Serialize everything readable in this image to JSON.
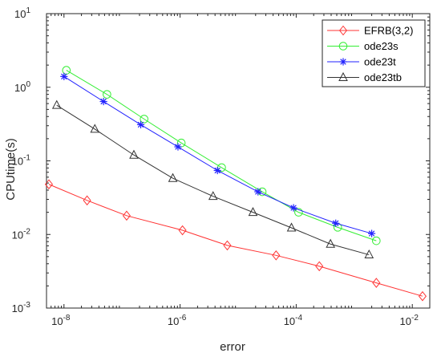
{
  "chart_data": {
    "type": "line",
    "xlabel": "error",
    "ylabel": "CPUtime(s)",
    "x_scale": "log",
    "y_scale": "log",
    "xlim": [
      5e-09,
      0.02
    ],
    "ylim": [
      0.001,
      10
    ],
    "grid": false,
    "legend_position": "top-right",
    "x_ticks": [
      {
        "value": 1e-08,
        "base": "10",
        "exp": "-8"
      },
      {
        "value": 1e-06,
        "base": "10",
        "exp": "-6"
      },
      {
        "value": 0.0001,
        "base": "10",
        "exp": "-4"
      },
      {
        "value": 0.01,
        "base": "10",
        "exp": "-2"
      }
    ],
    "y_ticks": [
      {
        "value": 0.001,
        "base": "10",
        "exp": "-3"
      },
      {
        "value": 0.01,
        "base": "10",
        "exp": "-2"
      },
      {
        "value": 0.1,
        "base": "10",
        "exp": "-1"
      },
      {
        "value": 1,
        "base": "10",
        "exp": "0"
      },
      {
        "value": 10,
        "base": "10",
        "exp": "1"
      }
    ],
    "series": [
      {
        "name": "EFRB(3,2)",
        "color": "#ff3333",
        "marker": "diamond",
        "x": [
          5.5e-09,
          2.5e-08,
          1.2e-07,
          1.1e-06,
          6.5e-06,
          4.5e-05,
          0.00025,
          0.0024,
          0.015
        ],
        "y": [
          0.048,
          0.029,
          0.018,
          0.0114,
          0.0071,
          0.0052,
          0.0037,
          0.0022,
          0.00145
        ]
      },
      {
        "name": "ode23s",
        "color": "#33ee33",
        "marker": "circle",
        "x": [
          1.1e-08,
          5.5e-08,
          2.4e-07,
          1.05e-06,
          5.2e-06,
          2.6e-05,
          0.00011,
          0.00052,
          0.0024
        ],
        "y": [
          1.7,
          0.8,
          0.37,
          0.175,
          0.081,
          0.038,
          0.02,
          0.0125,
          0.0082
        ]
      },
      {
        "name": "ode23t",
        "color": "#2222ff",
        "marker": "asterisk",
        "x": [
          1e-08,
          4.8e-08,
          2.1e-07,
          9.2e-07,
          4.4e-06,
          2.2e-05,
          9e-05,
          0.00048,
          0.002
        ],
        "y": [
          1.4,
          0.64,
          0.31,
          0.155,
          0.074,
          0.038,
          0.023,
          0.0142,
          0.0103
        ]
      },
      {
        "name": "ode23tb",
        "color": "#333333",
        "marker": "triangle",
        "x": [
          7.5e-09,
          3.4e-08,
          1.6e-07,
          7.5e-07,
          3.7e-06,
          1.8e-05,
          8.3e-05,
          0.00039,
          0.0018
        ],
        "y": [
          0.57,
          0.27,
          0.12,
          0.058,
          0.033,
          0.02,
          0.0123,
          0.0074,
          0.0053
        ]
      }
    ]
  }
}
